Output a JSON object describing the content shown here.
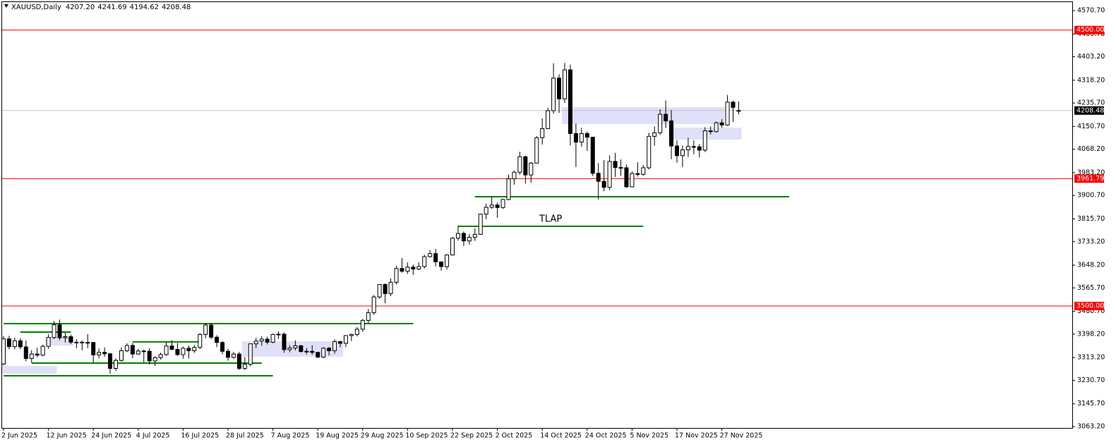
{
  "chart_data": {
    "type": "candlestick",
    "header": {
      "symbol": "XAUUSD,Daily",
      "ohlc": [
        "4207.20",
        "4241.69",
        "4194.62",
        "4208.48"
      ]
    },
    "up_color": "#ffffff",
    "down_color": "#000000",
    "edge_color": "#000000",
    "ylim": [
      3058.1,
      4601.4
    ],
    "yticks": [
      {
        "value": 4570.7,
        "label": "4570.70"
      },
      {
        "value": 4485.7,
        "label": "4485.70"
      },
      {
        "value": 4403.2,
        "label": "4403.20"
      },
      {
        "value": 4318.2,
        "label": "4318.20"
      },
      {
        "value": 4235.7,
        "label": "4235.70"
      },
      {
        "value": 4150.7,
        "label": "4150.70"
      },
      {
        "value": 4068.2,
        "label": "4068.20"
      },
      {
        "value": 3983.2,
        "label": "3983.20"
      },
      {
        "value": 3900.7,
        "label": "3900.70"
      },
      {
        "value": 3815.7,
        "label": "3815.70"
      },
      {
        "value": 3733.2,
        "label": "3733.20"
      },
      {
        "value": 3648.2,
        "label": "3648.20"
      },
      {
        "value": 3565.7,
        "label": "3565.70"
      },
      {
        "value": 3480.7,
        "label": "3480.70"
      },
      {
        "value": 3398.2,
        "label": "3398.20"
      },
      {
        "value": 3313.2,
        "label": "3313.20"
      },
      {
        "value": 3230.7,
        "label": "3230.70"
      },
      {
        "value": 3145.7,
        "label": "3145.70"
      },
      {
        "value": 3063.2,
        "label": "3063.20"
      }
    ],
    "categories": [
      "2 Jun 2025",
      null,
      null,
      null,
      null,
      null,
      null,
      null,
      "12 Jun 2025",
      null,
      null,
      null,
      null,
      null,
      null,
      null,
      "24 Jun 2025",
      null,
      null,
      null,
      null,
      null,
      null,
      null,
      "4 Jul 2025",
      null,
      null,
      null,
      null,
      null,
      null,
      null,
      "16 Jul 2025",
      null,
      null,
      null,
      null,
      null,
      null,
      null,
      "28 Jul 2025",
      null,
      null,
      null,
      null,
      null,
      null,
      null,
      "7 Aug 2025",
      null,
      null,
      null,
      null,
      null,
      null,
      null,
      "19 Aug 2025",
      null,
      null,
      null,
      null,
      null,
      null,
      null,
      "29 Aug 2025",
      null,
      null,
      null,
      null,
      null,
      null,
      null,
      "10 Sep 2025",
      null,
      null,
      null,
      null,
      null,
      null,
      null,
      "22 Sep 2025",
      null,
      null,
      null,
      null,
      null,
      null,
      null,
      "2 Oct 2025",
      null,
      null,
      null,
      null,
      null,
      null,
      null,
      "14 Oct 2025",
      null,
      null,
      null,
      null,
      null,
      null,
      null,
      "24 Oct 2025",
      null,
      null,
      null,
      null,
      null,
      null,
      null,
      "5 Nov 2025",
      null,
      null,
      null,
      null,
      null,
      null,
      null,
      "17 Nov 2025",
      null,
      null,
      null,
      null,
      null,
      null,
      null,
      "27 Nov 2025",
      null,
      null,
      null
    ],
    "open": [
      3290,
      3381,
      3353,
      3374,
      3352,
      3310,
      3326,
      3322,
      3354,
      3386,
      3432,
      3385,
      3389,
      3369,
      3369,
      3368,
      3368,
      3323,
      3332,
      3327,
      3274,
      3303,
      3338,
      3357,
      3326,
      3337,
      3336,
      3301,
      3313,
      3324,
      3355,
      3343,
      3324,
      3347,
      3338,
      3350,
      3397,
      3431,
      3387,
      3368,
      3336,
      3314,
      3326,
      3274,
      3289,
      3363,
      3373,
      3380,
      3369,
      3397,
      3398,
      3342,
      3348,
      3356,
      3335,
      3336,
      3332,
      3315,
      3347,
      3338,
      3371,
      3365,
      3393,
      3397,
      3416,
      3448,
      3476,
      3533,
      3578,
      3545,
      3586,
      3636,
      3626,
      3641,
      3634,
      3643,
      3679,
      3690,
      3660,
      3643,
      3685,
      3746,
      3763,
      3736,
      3749,
      3760,
      3833,
      3858,
      3866,
      3857,
      3886,
      3961,
      3985,
      4041,
      3975,
      4018,
      4110,
      4143,
      4208,
      4326,
      4251,
      4356,
      4125,
      4094,
      4125,
      4112,
      3981,
      3952,
      3930,
      4024,
      4002,
      4001,
      3932,
      3980,
      3977,
      4001,
      4115,
      4128,
      4195,
      4171,
      4080,
      4045,
      4066,
      4078,
      4077,
      4065,
      4135,
      4132,
      4164,
      4156,
      4239,
      4207.2
    ],
    "high": [
      3392,
      3392,
      3385,
      3384,
      3375,
      3340,
      3349,
      3360,
      3398,
      3446,
      3451,
      3403,
      3396,
      3380,
      3375,
      3398,
      3370,
      3346,
      3350,
      3330,
      3310,
      3350,
      3365,
      3366,
      3345,
      3342,
      3347,
      3318,
      3331,
      3369,
      3376,
      3366,
      3353,
      3357,
      3359,
      3402,
      3439,
      3438,
      3394,
      3372,
      3345,
      3334,
      3334,
      3315,
      3364,
      3385,
      3391,
      3389,
      3400,
      3409,
      3404,
      3358,
      3375,
      3359,
      3348,
      3358,
      3334,
      3351,
      3352,
      3379,
      3374,
      3394,
      3400,
      3424,
      3453,
      3489,
      3540,
      3578,
      3582,
      3600,
      3646,
      3674,
      3658,
      3650,
      3659,
      3686,
      3703,
      3707,
      3660,
      3688,
      3750,
      3791,
      3770,
      3761,
      3782,
      3835,
      3871,
      3895,
      3875,
      3889,
      3977,
      3991,
      4059,
      4045,
      4022,
      4116,
      4180,
      4218,
      4380,
      4340,
      4381,
      4375,
      4161,
      4146,
      4132,
      4113,
      4018,
      4029,
      4046,
      4055,
      4031,
      4013,
      3988,
      4021,
      4011,
      4128,
      4151,
      4213,
      4245,
      4210,
      4101,
      4082,
      4110,
      4100,
      4087,
      4148,
      4151,
      4169,
      4177,
      4265,
      4244,
      4241.69
    ],
    "low": [
      3285,
      3343,
      3343,
      3343,
      3300,
      3295,
      3315,
      3318,
      3345,
      3380,
      3376,
      3368,
      3362,
      3347,
      3340,
      3347,
      3295,
      3311,
      3316,
      3255,
      3265,
      3298,
      3333,
      3311,
      3323,
      3296,
      3288,
      3283,
      3306,
      3320,
      3340,
      3319,
      3309,
      3310,
      3330,
      3344,
      3383,
      3380,
      3351,
      3325,
      3302,
      3308,
      3268,
      3268,
      3281,
      3347,
      3356,
      3361,
      3365,
      3381,
      3331,
      3332,
      3339,
      3332,
      3325,
      3323,
      3311,
      3311,
      3321,
      3327,
      3351,
      3351,
      3373,
      3390,
      3406,
      3437,
      3468,
      3527,
      3510,
      3536,
      3578,
      3621,
      3616,
      3613,
      3630,
      3636,
      3675,
      3644,
      3628,
      3632,
      3683,
      3737,
      3717,
      3722,
      3736,
      3758,
      3814,
      3852,
      3820,
      3852,
      3883,
      3940,
      3976,
      3944,
      3947,
      4017,
      4085,
      4141,
      4197,
      4200,
      4236,
      4082,
      4004,
      4077,
      4062,
      3971,
      3886,
      3916,
      3920,
      3968,
      3972,
      3928,
      3930,
      3969,
      3972,
      3995,
      4081,
      4120,
      4145,
      4032,
      4019,
      4004,
      4040,
      4050,
      4038,
      4058,
      4122,
      4129,
      4146,
      4153,
      4167,
      4194.62
    ],
    "close": [
      3381,
      3353,
      3374,
      3352,
      3310,
      3326,
      3322,
      3354,
      3386,
      3432,
      3385,
      3389,
      3369,
      3369,
      3368,
      3368,
      3323,
      3332,
      3327,
      3274,
      3303,
      3338,
      3357,
      3326,
      3337,
      3336,
      3301,
      3313,
      3324,
      3355,
      3343,
      3324,
      3347,
      3338,
      3350,
      3397,
      3431,
      3387,
      3368,
      3336,
      3314,
      3326,
      3274,
      3289,
      3363,
      3373,
      3380,
      3369,
      3397,
      3398,
      3342,
      3348,
      3356,
      3335,
      3336,
      3332,
      3315,
      3347,
      3338,
      3371,
      3365,
      3393,
      3397,
      3416,
      3448,
      3476,
      3533,
      3578,
      3545,
      3586,
      3636,
      3626,
      3641,
      3634,
      3643,
      3679,
      3690,
      3660,
      3643,
      3685,
      3746,
      3763,
      3736,
      3749,
      3760,
      3833,
      3858,
      3866,
      3857,
      3886,
      3961,
      3985,
      4041,
      3975,
      4018,
      4110,
      4143,
      4208,
      4326,
      4251,
      4356,
      4125,
      4094,
      4125,
      4112,
      3981,
      3952,
      3930,
      4024,
      4002,
      4001,
      3932,
      3980,
      3977,
      4001,
      4115,
      4128,
      4195,
      4171,
      4080,
      4045,
      4066,
      4078,
      4077,
      4065,
      4135,
      4132,
      4164,
      4156,
      4239,
      4220,
      4208.48
    ],
    "hlines": [
      {
        "value": 4500,
        "label": "4500.00",
        "color": "#ff0000"
      },
      {
        "value": 3961.79,
        "label": "3961.79",
        "color": "#ff0000"
      },
      {
        "value": 3500,
        "label": "3500.00",
        "color": "#ff0000"
      },
      {
        "value": 4208.48,
        "label": "4208.48",
        "color": "#c0c0c0"
      }
    ],
    "level_color": "#008000",
    "levels": [
      {
        "price": 3436.3,
        "from": 0,
        "to": 73
      },
      {
        "price": 3405.6,
        "from": 3,
        "to": 12
      },
      {
        "price": 3370,
        "from": 23,
        "to": 35
      },
      {
        "price": 3293.2,
        "from": 5,
        "to": 46
      },
      {
        "price": 3247.2,
        "from": 0,
        "to": 48
      },
      {
        "price": 3788.9,
        "from": 81,
        "to": 114,
        "label": "TLAP"
      },
      {
        "price": 3896.2,
        "from": 84,
        "to": 140
      }
    ],
    "zone_color": "#e0e0f8",
    "zones": [
      {
        "top": 3282.9,
        "bottom": 3254.9,
        "from": 0,
        "to": 9
      },
      {
        "top": 3387.7,
        "bottom": 3357,
        "from": 8,
        "to": 12
      },
      {
        "top": 3372.4,
        "bottom": 3316.2,
        "from": 43,
        "to": 60
      },
      {
        "top": 4220.7,
        "bottom": 4159.4,
        "from": 100,
        "to": 128
      },
      {
        "top": 4146.6,
        "bottom": 4103.1,
        "from": 119,
        "to": 131
      }
    ]
  }
}
